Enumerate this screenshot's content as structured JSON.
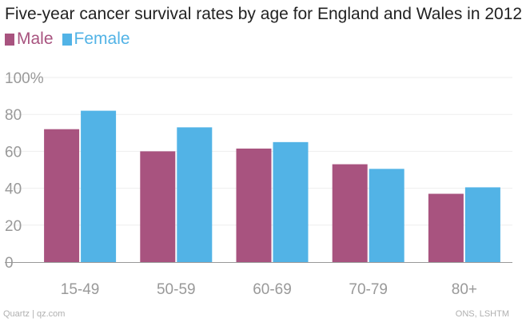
{
  "title": "Five-year cancer survival rates by age for England and Wales in 2012",
  "footer": {
    "left": "Quartz | qz.com",
    "right": "ONS, LSHTM"
  },
  "colors": {
    "male": "#A8537F",
    "female": "#52B3E6",
    "grid": "#eeeeee",
    "axis": "#999999",
    "tick_text": "#999999"
  },
  "chart_data": {
    "type": "bar",
    "title": "Five-year cancer survival rates by age for England and Wales in 2012",
    "categories": [
      "15-49",
      "50-59",
      "60-69",
      "70-79",
      "80+"
    ],
    "series": [
      {
        "name": "Male",
        "values": [
          72,
          60,
          61.5,
          53,
          37
        ]
      },
      {
        "name": "Female",
        "values": [
          82,
          73,
          65,
          50.5,
          40.5
        ]
      }
    ],
    "yticks": [
      "0",
      "20",
      "40",
      "60",
      "80",
      "100%"
    ],
    "ylim": [
      0,
      100
    ],
    "xlabel": "",
    "ylabel": "",
    "grid": true,
    "legend": "top-left"
  }
}
